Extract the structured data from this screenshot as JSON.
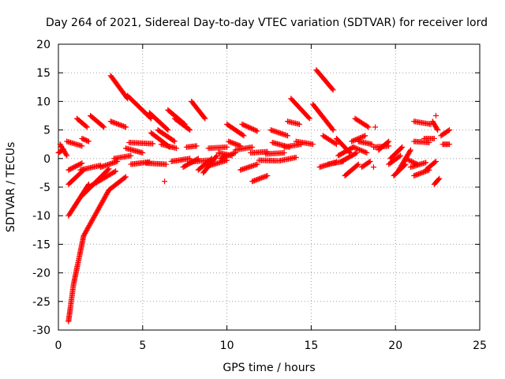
{
  "chart_data": {
    "type": "scatter",
    "title": "Day 264 of 2021, Sidereal Day-to-day VTEC variation (SDTVAR) for receiver lord",
    "xlabel": "GPS time / hours",
    "ylabel": "SDTVAR / TECUs",
    "xlim": [
      0,
      25
    ],
    "ylim": [
      -30,
      20
    ],
    "xticks": [
      0,
      5,
      10,
      15,
      20,
      25
    ],
    "yticks": [
      -30,
      -25,
      -20,
      -15,
      -10,
      -5,
      0,
      5,
      10,
      15,
      20
    ],
    "grid": true,
    "marker": "+",
    "color": "#ff0000",
    "segments": [
      {
        "x": [
          0.0,
          0.3
        ],
        "y": [
          1.0,
          1.6
        ]
      },
      {
        "x": [
          0.1,
          0.5
        ],
        "y": [
          2.5,
          0.5
        ]
      },
      {
        "x": [
          0.5,
          1.4
        ],
        "y": [
          3.0,
          2.2
        ]
      },
      {
        "x": [
          0.6,
          1.4
        ],
        "y": [
          -2.0,
          -0.8
        ]
      },
      {
        "x": [
          0.6,
          1.5
        ],
        "y": [
          -4.5,
          -2.0
        ]
      },
      {
        "x": [
          0.6,
          1.8
        ],
        "y": [
          -10.0,
          -4.5
        ]
      },
      {
        "x": [
          0.6,
          0.9
        ],
        "y": [
          -28.5,
          -22.0
        ]
      },
      {
        "x": [
          0.9,
          1.5
        ],
        "y": [
          -22.0,
          -13.5
        ]
      },
      {
        "x": [
          1.5,
          3.0
        ],
        "y": [
          -13.5,
          -5.5
        ]
      },
      {
        "x": [
          3.0,
          4.0
        ],
        "y": [
          -5.5,
          -3.2
        ]
      },
      {
        "x": [
          1.3,
          2.5
        ],
        "y": [
          -2.0,
          -1.2
        ]
      },
      {
        "x": [
          1.4,
          3.0
        ],
        "y": [
          -6.5,
          -1.8
        ]
      },
      {
        "x": [
          1.8,
          3.4
        ],
        "y": [
          -5.0,
          -2.2
        ]
      },
      {
        "x": [
          1.1,
          1.7
        ],
        "y": [
          7.0,
          5.5
        ]
      },
      {
        "x": [
          1.4,
          1.8
        ],
        "y": [
          3.5,
          3.0
        ]
      },
      {
        "x": [
          1.9,
          2.7
        ],
        "y": [
          7.5,
          5.5
        ]
      },
      {
        "x": [
          2.5,
          3.5
        ],
        "y": [
          -1.5,
          -0.5
        ]
      },
      {
        "x": [
          3.1,
          4.1
        ],
        "y": [
          14.5,
          10.5
        ]
      },
      {
        "x": [
          3.1,
          4.0
        ],
        "y": [
          6.5,
          5.5
        ]
      },
      {
        "x": [
          3.3,
          4.3
        ],
        "y": [
          0.0,
          0.5
        ]
      },
      {
        "x": [
          4.0,
          5.0
        ],
        "y": [
          1.8,
          1.0
        ]
      },
      {
        "x": [
          4.1,
          5.5
        ],
        "y": [
          11.0,
          7.0
        ]
      },
      {
        "x": [
          4.2,
          5.6
        ],
        "y": [
          2.8,
          2.6
        ]
      },
      {
        "x": [
          4.3,
          5.4
        ],
        "y": [
          -1.0,
          -0.6
        ]
      },
      {
        "x": [
          5.2,
          6.4
        ],
        "y": [
          -0.8,
          -1.0
        ]
      },
      {
        "x": [
          5.4,
          6.5
        ],
        "y": [
          8.0,
          5.0
        ]
      },
      {
        "x": [
          5.5,
          6.6
        ],
        "y": [
          4.5,
          2.0
        ]
      },
      {
        "x": [
          5.9,
          6.9
        ],
        "y": [
          5.0,
          3.0
        ]
      },
      {
        "x": [
          6.1,
          7.0
        ],
        "y": [
          2.5,
          1.8
        ]
      },
      {
        "x": [
          6.5,
          7.5
        ],
        "y": [
          8.5,
          6.0
        ]
      },
      {
        "x": [
          6.7,
          7.8
        ],
        "y": [
          -0.5,
          0.0
        ]
      },
      {
        "x": [
          6.9,
          7.8
        ],
        "y": [
          7.0,
          5.0
        ]
      },
      {
        "x": [
          7.4,
          8.3
        ],
        "y": [
          -1.5,
          0.0
        ]
      },
      {
        "x": [
          7.6,
          8.2
        ],
        "y": [
          2.0,
          2.2
        ]
      },
      {
        "x": [
          7.8,
          8.9
        ],
        "y": [
          -0.6,
          -0.3
        ]
      },
      {
        "x": [
          7.9,
          8.7
        ],
        "y": [
          10.0,
          7.0
        ]
      },
      {
        "x": [
          8.3,
          9.1
        ],
        "y": [
          -2.0,
          0.0
        ]
      },
      {
        "x": [
          8.6,
          9.4
        ],
        "y": [
          -2.5,
          0.5
        ]
      },
      {
        "x": [
          8.9,
          10.0
        ],
        "y": [
          1.8,
          2.0
        ]
      },
      {
        "x": [
          9.0,
          10.0
        ],
        "y": [
          -1.2,
          -0.3
        ]
      },
      {
        "x": [
          9.5,
          10.3
        ],
        "y": [
          1.0,
          0.5
        ]
      },
      {
        "x": [
          9.6,
          10.5
        ],
        "y": [
          0.0,
          1.0
        ]
      },
      {
        "x": [
          10.0,
          11.0
        ],
        "y": [
          6.0,
          4.0
        ]
      },
      {
        "x": [
          10.1,
          10.8
        ],
        "y": [
          3.0,
          2.2
        ]
      },
      {
        "x": [
          10.5,
          11.5
        ],
        "y": [
          1.5,
          2.0
        ]
      },
      {
        "x": [
          10.8,
          11.8
        ],
        "y": [
          -2.0,
          -1.0
        ]
      },
      {
        "x": [
          10.9,
          11.8
        ],
        "y": [
          6.0,
          4.8
        ]
      },
      {
        "x": [
          11.4,
          12.4
        ],
        "y": [
          1.0,
          1.2
        ]
      },
      {
        "x": [
          11.5,
          12.4
        ],
        "y": [
          -4.0,
          -3.0
        ]
      },
      {
        "x": [
          11.9,
          13.0
        ],
        "y": [
          -0.3,
          -0.4
        ]
      },
      {
        "x": [
          12.3,
          13.4
        ],
        "y": [
          0.8,
          1.0
        ]
      },
      {
        "x": [
          12.6,
          13.6
        ],
        "y": [
          5.0,
          4.0
        ]
      },
      {
        "x": [
          12.7,
          13.7
        ],
        "y": [
          2.8,
          2.0
        ]
      },
      {
        "x": [
          13.1,
          14.1
        ],
        "y": [
          -0.4,
          0.2
        ]
      },
      {
        "x": [
          13.4,
          14.4
        ],
        "y": [
          2.0,
          2.5
        ]
      },
      {
        "x": [
          13.6,
          14.3
        ],
        "y": [
          6.5,
          6.0
        ]
      },
      {
        "x": [
          13.8,
          14.9
        ],
        "y": [
          10.5,
          7.0
        ]
      },
      {
        "x": [
          14.1,
          15.1
        ],
        "y": [
          3.0,
          2.5
        ]
      },
      {
        "x": [
          15.1,
          16.3
        ],
        "y": [
          9.5,
          5.0
        ]
      },
      {
        "x": [
          15.3,
          16.3
        ],
        "y": [
          15.5,
          12.0
        ]
      },
      {
        "x": [
          15.5,
          16.5
        ],
        "y": [
          -1.5,
          -0.6
        ]
      },
      {
        "x": [
          15.7,
          16.5
        ],
        "y": [
          4.0,
          2.5
        ]
      },
      {
        "x": [
          16.0,
          16.9
        ],
        "y": [
          -1.0,
          -0.5
        ]
      },
      {
        "x": [
          16.5,
          17.3
        ],
        "y": [
          3.5,
          1.0
        ]
      },
      {
        "x": [
          16.6,
          17.5
        ],
        "y": [
          0.5,
          2.0
        ]
      },
      {
        "x": [
          16.8,
          17.7
        ],
        "y": [
          -0.5,
          1.0
        ]
      },
      {
        "x": [
          17.0,
          17.8
        ],
        "y": [
          -3.0,
          -1.0
        ]
      },
      {
        "x": [
          17.4,
          18.2
        ],
        "y": [
          3.0,
          4.0
        ]
      },
      {
        "x": [
          17.5,
          18.3
        ],
        "y": [
          2.0,
          1.0
        ]
      },
      {
        "x": [
          17.6,
          18.4
        ],
        "y": [
          7.0,
          5.5
        ]
      },
      {
        "x": [
          17.8,
          18.6
        ],
        "y": [
          3.0,
          2.5
        ]
      },
      {
        "x": [
          18.0,
          18.5
        ],
        "y": [
          -1.5,
          -0.5
        ]
      },
      {
        "x": [
          18.7,
          19.6
        ],
        "y": [
          2.0,
          2.2
        ]
      },
      {
        "x": [
          19.0,
          19.6
        ],
        "y": [
          1.5,
          3.0
        ]
      },
      {
        "x": [
          19.6,
          20.3
        ],
        "y": [
          -1.0,
          0.5
        ]
      },
      {
        "x": [
          19.7,
          20.4
        ],
        "y": [
          0.0,
          2.0
        ]
      },
      {
        "x": [
          19.9,
          20.6
        ],
        "y": [
          -3.0,
          -1.0
        ]
      },
      {
        "x": [
          20.2,
          20.9
        ],
        "y": [
          -2.0,
          1.5
        ]
      },
      {
        "x": [
          20.6,
          21.3
        ],
        "y": [
          0.0,
          -1.0
        ]
      },
      {
        "x": [
          20.9,
          21.8
        ],
        "y": [
          -1.5,
          -0.7
        ]
      },
      {
        "x": [
          21.1,
          22.1
        ],
        "y": [
          6.5,
          6.0
        ]
      },
      {
        "x": [
          21.1,
          22.0
        ],
        "y": [
          3.0,
          2.8
        ]
      },
      {
        "x": [
          21.1,
          22.0
        ],
        "y": [
          -3.0,
          -2.0
        ]
      },
      {
        "x": [
          21.7,
          22.3
        ],
        "y": [
          3.5,
          3.5
        ]
      },
      {
        "x": [
          21.8,
          22.4
        ],
        "y": [
          -2.0,
          -0.5
        ]
      },
      {
        "x": [
          22.2,
          22.5
        ],
        "y": [
          6.5,
          5.0
        ]
      },
      {
        "x": [
          22.3,
          22.6
        ],
        "y": [
          -4.5,
          -3.5
        ]
      },
      {
        "x": [
          22.7,
          23.2
        ],
        "y": [
          4.0,
          5.0
        ]
      },
      {
        "x": [
          22.8,
          23.2
        ],
        "y": [
          2.5,
          2.5
        ]
      }
    ],
    "points": [
      {
        "x": 6.3,
        "y": -4.0
      },
      {
        "x": 18.8,
        "y": 5.5
      },
      {
        "x": 18.7,
        "y": -1.5
      },
      {
        "x": 22.4,
        "y": 7.5
      },
      {
        "x": 16.3,
        "y": 5.0
      }
    ]
  }
}
